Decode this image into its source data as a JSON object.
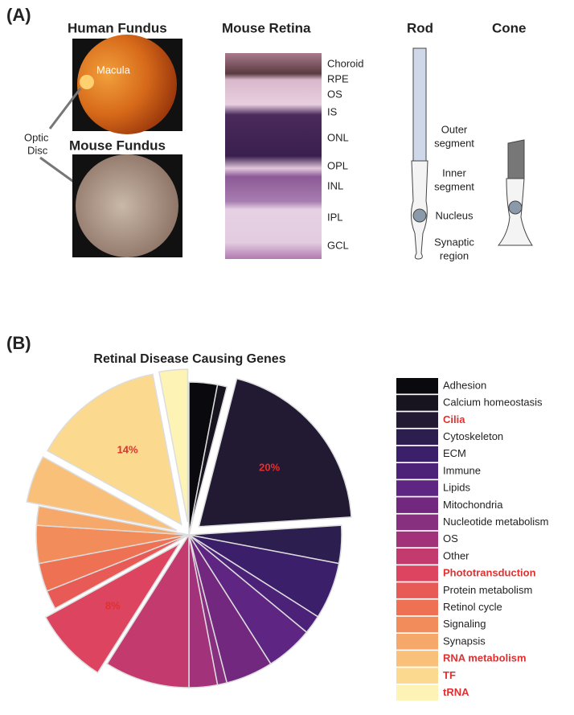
{
  "panel_a": {
    "label": "(A)",
    "human_fundus": {
      "title": "Human Fundus",
      "macula": "Macula"
    },
    "optic_disc": [
      "Optic",
      "Disc"
    ],
    "mouse_fundus": {
      "title": "Mouse Fundus"
    },
    "mouse_retina": {
      "title": "Mouse Retina",
      "layers": [
        "Choroid",
        "RPE",
        "OS",
        "IS",
        "ONL",
        "OPL",
        "INL",
        "IPL",
        "GCL"
      ]
    },
    "photoreceptors": {
      "rod": "Rod",
      "cone": "Cone",
      "parts": [
        [
          "Outer",
          "segment"
        ],
        [
          "Inner",
          "segment"
        ],
        [
          "Nucleus"
        ],
        [
          "Synaptic",
          "region"
        ]
      ]
    }
  },
  "panel_b": {
    "label": "(B)"
  },
  "chart_data": {
    "type": "pie",
    "title": "Retinal Disease Causing Genes",
    "categories": [
      "Adhesion",
      "Calcium homeostasis",
      "Cilia",
      "Cytoskeleton",
      "ECM",
      "Immune",
      "Lipids",
      "Mitochondria",
      "Nucleotide metabolism",
      "OS",
      "Other",
      "Phototransduction",
      "Protein metabolism",
      "Retinol cycle",
      "Signaling",
      "Synapsis",
      "RNA metabolism",
      "TF",
      "tRNA"
    ],
    "values": [
      3,
      1,
      20,
      4,
      6,
      2,
      5,
      5,
      1,
      3,
      9,
      8,
      2,
      3,
      4,
      2,
      5,
      14,
      3
    ],
    "value_labels": [
      null,
      null,
      "20%",
      null,
      null,
      null,
      null,
      null,
      null,
      null,
      null,
      "8%",
      null,
      null,
      null,
      null,
      null,
      "14%",
      null
    ],
    "colors": [
      "#0a0a0e",
      "#17131f",
      "#221a33",
      "#2c1f4f",
      "#3b1f6a",
      "#4b2277",
      "#5e2682",
      "#72287f",
      "#86307f",
      "#a2327a",
      "#c23a6e",
      "#dc4460",
      "#e85a56",
      "#ee7154",
      "#f28c5a",
      "#f6a86a",
      "#f9c07a",
      "#fbd98e",
      "#fcf3b4"
    ],
    "exploded": [
      false,
      false,
      true,
      false,
      false,
      false,
      false,
      false,
      false,
      false,
      false,
      true,
      false,
      false,
      false,
      false,
      true,
      true,
      true
    ],
    "highlighted": [
      false,
      false,
      true,
      false,
      false,
      false,
      false,
      false,
      false,
      false,
      false,
      true,
      false,
      false,
      false,
      false,
      true,
      true,
      true
    ],
    "legend": "right"
  }
}
